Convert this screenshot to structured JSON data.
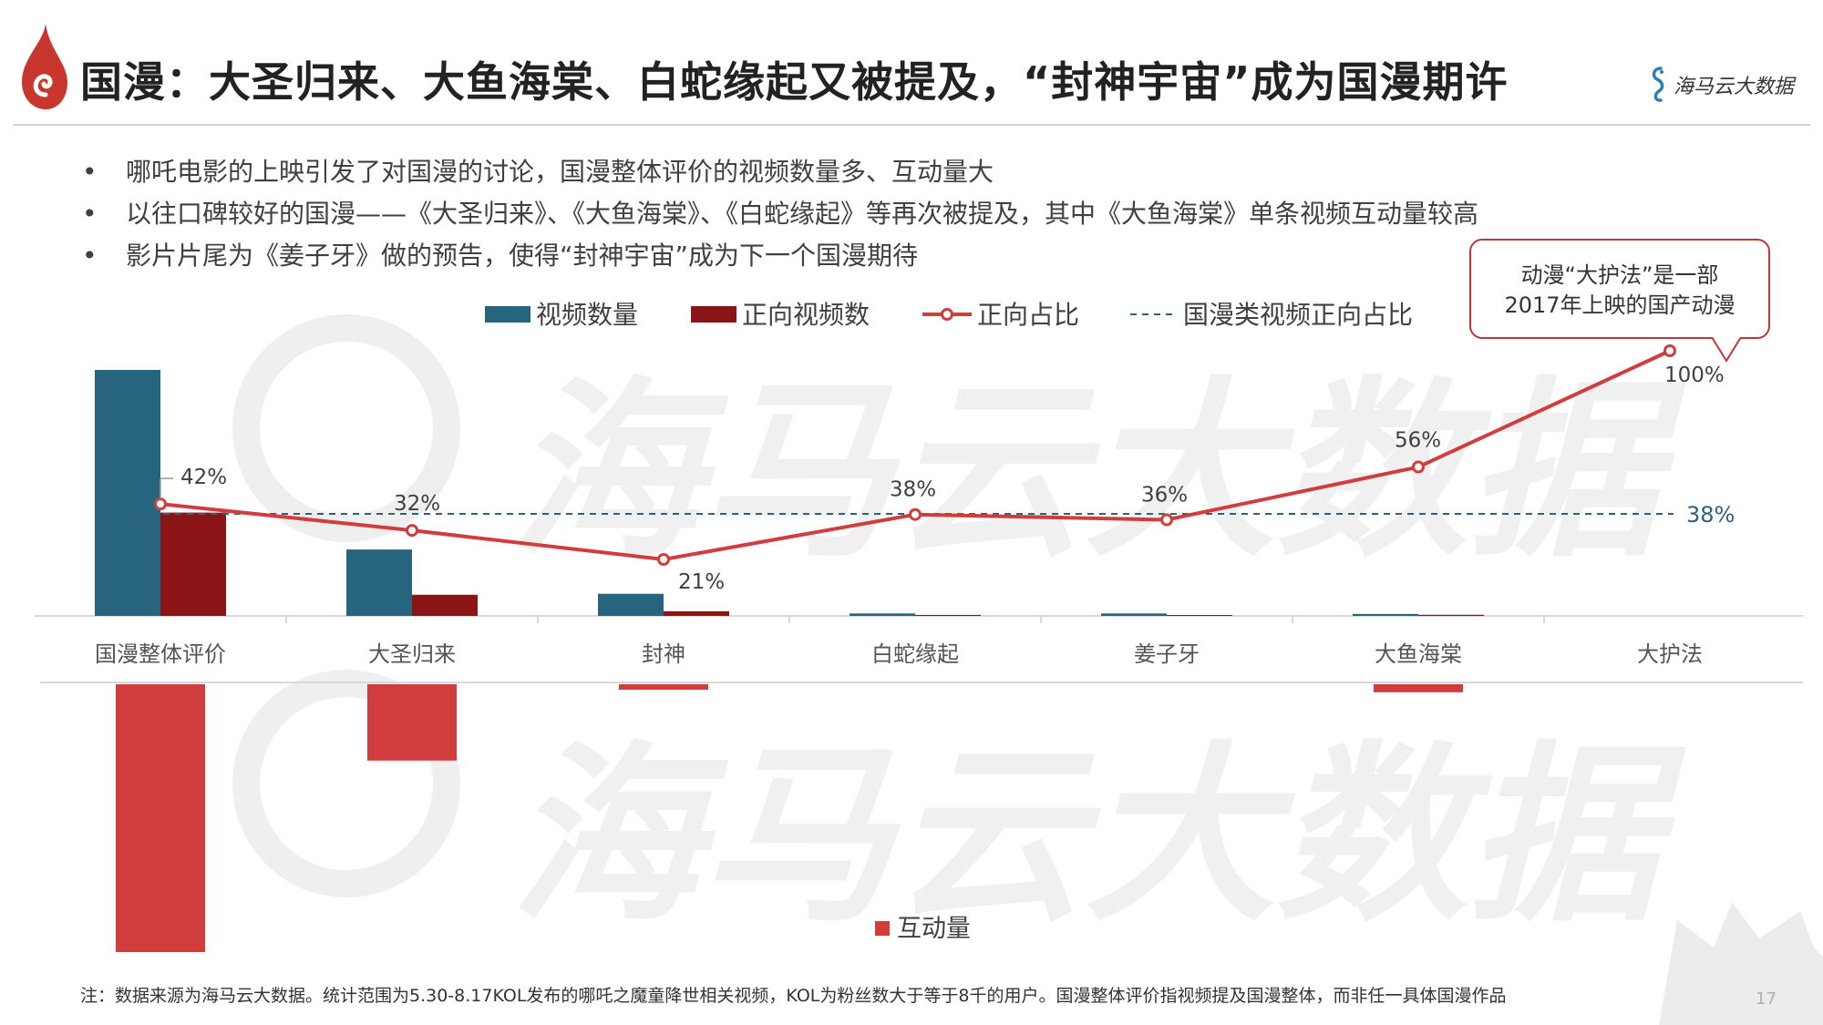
{
  "title": "国漫：大圣归来、大鱼海棠、白蛇缘起又被提及，“封神宇宙”成为国漫期许",
  "brand": {
    "name": "海马云大数据"
  },
  "bullets": [
    "哪吒电影的上映引发了对国漫的讨论，国漫整体评价的视频数量多、互动量大",
    "以往口碑较好的国漫——《大圣归来》、《大鱼海棠》、《白蛇缘起》等再次被提及，其中《大鱼海棠》单条视频互动量较高",
    "影片片尾为《姜子牙》做的预告，使得“封神宇宙”成为下一个国漫期待"
  ],
  "bullet_symbol": "•",
  "callout": {
    "line1": "动漫“大护法”是一部",
    "line2": "2017年上映的国产动漫"
  },
  "watermark_text": "海马云大数据",
  "chart_data": {
    "type": "bar",
    "categories": [
      "国漫整体评价",
      "大圣归来",
      "封神",
      "白蛇缘起",
      "姜子牙",
      "大鱼海棠",
      "大护法"
    ],
    "series": [
      {
        "name": "视频数量",
        "color": "#27657f",
        "values": [
          100,
          27,
          9,
          1,
          1,
          0.8,
          0
        ]
      },
      {
        "name": "正向视频数",
        "color": "#8b1516",
        "values": [
          42,
          8.6,
          1.9,
          0.4,
          0.36,
          0.45,
          0
        ]
      },
      {
        "name": "正向占比",
        "color": "#d03d3c",
        "type": "line",
        "values": [
          42,
          32,
          21,
          38,
          36,
          56,
          100
        ],
        "labels": [
          "42%",
          "32%",
          "21%",
          "38%",
          "36%",
          "56%",
          "100%"
        ]
      },
      {
        "name": "国漫类视频正向占比",
        "color": "#2e6277",
        "type": "reference",
        "value": 38,
        "label": "38%"
      },
      {
        "name": "互动量",
        "color": "#d03d3c",
        "values": [
          100,
          28.5,
          2,
          0,
          0,
          3,
          0
        ]
      }
    ],
    "ylim_bars": [
      0,
      100
    ],
    "ylim_ratio": [
      0,
      100
    ],
    "ylim_interaction": [
      0,
      100
    ],
    "legend": "top-center"
  },
  "footnote": "注：数据来源为海马云大数据。统计范围为5.30-8.17KOL发布的哪吒之魔童降世相关视频，KOL为粉丝数大于等于8千的用户。国漫整体评价指视频提及国漫整体，而非任一具体国漫作品",
  "page_number": "17"
}
